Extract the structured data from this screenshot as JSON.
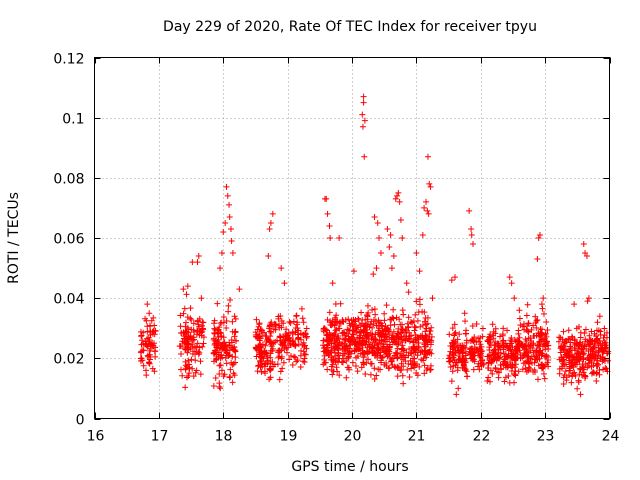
{
  "chart_data": {
    "type": "scatter",
    "title": "Day 229 of 2020, Rate Of TEC Index for receiver tpyu",
    "xlabel": "GPS time / hours",
    "ylabel": "ROTI / TECUs",
    "xlim": [
      16,
      24
    ],
    "ylim": [
      0,
      0.12
    ],
    "xticks": [
      16,
      17,
      18,
      19,
      20,
      21,
      22,
      23,
      24
    ],
    "xtick_labels": [
      "16",
      "17",
      "18",
      "19",
      "20",
      "21",
      "22",
      "23",
      "24"
    ],
    "yticks": [
      0,
      0.02,
      0.04,
      0.06,
      0.08,
      0.1,
      0.12
    ],
    "ytick_labels": [
      "0",
      "0.02",
      "0.04",
      "0.06",
      "0.08",
      "0.1",
      "0.12"
    ],
    "grid": true,
    "marker": "plus",
    "color": "#ff0000",
    "clusters": [
      {
        "x_start": 16.72,
        "x_end": 16.95,
        "y_center": 0.025,
        "y_spread": 0.01,
        "count": 70
      },
      {
        "x_start": 17.32,
        "x_end": 17.7,
        "y_center": 0.025,
        "y_spread": 0.012,
        "count": 120
      },
      {
        "x_start": 17.85,
        "x_end": 18.2,
        "y_center": 0.024,
        "y_spread": 0.012,
        "count": 130
      },
      {
        "x_start": 18.5,
        "x_end": 18.78,
        "y_center": 0.024,
        "y_spread": 0.01,
        "count": 110
      },
      {
        "x_start": 18.78,
        "x_end": 19.3,
        "y_center": 0.025,
        "y_spread": 0.01,
        "count": 130
      },
      {
        "x_start": 19.55,
        "x_end": 19.95,
        "y_center": 0.025,
        "y_spread": 0.01,
        "count": 180
      },
      {
        "x_start": 19.95,
        "x_end": 20.55,
        "y_center": 0.026,
        "y_spread": 0.011,
        "count": 260
      },
      {
        "x_start": 20.55,
        "x_end": 21.25,
        "y_center": 0.025,
        "y_spread": 0.011,
        "count": 260
      },
      {
        "x_start": 21.5,
        "x_end": 22.05,
        "y_center": 0.022,
        "y_spread": 0.009,
        "count": 170
      },
      {
        "x_start": 22.1,
        "x_end": 22.55,
        "y_center": 0.021,
        "y_spread": 0.009,
        "count": 160
      },
      {
        "x_start": 22.55,
        "x_end": 23.05,
        "y_center": 0.024,
        "y_spread": 0.01,
        "count": 190
      },
      {
        "x_start": 23.2,
        "x_end": 23.7,
        "y_center": 0.021,
        "y_spread": 0.009,
        "count": 180
      },
      {
        "x_start": 23.7,
        "x_end": 23.98,
        "y_center": 0.022,
        "y_spread": 0.009,
        "count": 110
      }
    ],
    "notable_points": [
      {
        "x": 16.82,
        "y": 0.038
      },
      {
        "x": 16.85,
        "y": 0.035
      },
      {
        "x": 16.8,
        "y": 0.016
      },
      {
        "x": 17.45,
        "y": 0.044
      },
      {
        "x": 17.52,
        "y": 0.052
      },
      {
        "x": 17.6,
        "y": 0.052
      },
      {
        "x": 17.62,
        "y": 0.054
      },
      {
        "x": 17.38,
        "y": 0.043
      },
      {
        "x": 17.66,
        "y": 0.04
      },
      {
        "x": 17.95,
        "y": 0.05
      },
      {
        "x": 17.98,
        "y": 0.055
      },
      {
        "x": 18.0,
        "y": 0.062
      },
      {
        "x": 18.03,
        "y": 0.065
      },
      {
        "x": 18.05,
        "y": 0.077
      },
      {
        "x": 18.07,
        "y": 0.074
      },
      {
        "x": 18.09,
        "y": 0.071
      },
      {
        "x": 18.1,
        "y": 0.067
      },
      {
        "x": 18.12,
        "y": 0.063
      },
      {
        "x": 18.13,
        "y": 0.059
      },
      {
        "x": 18.15,
        "y": 0.055
      },
      {
        "x": 18.25,
        "y": 0.043
      },
      {
        "x": 18.7,
        "y": 0.054
      },
      {
        "x": 18.72,
        "y": 0.063
      },
      {
        "x": 18.74,
        "y": 0.065
      },
      {
        "x": 18.77,
        "y": 0.068
      },
      {
        "x": 18.9,
        "y": 0.05
      },
      {
        "x": 18.95,
        "y": 0.045
      },
      {
        "x": 19.58,
        "y": 0.073
      },
      {
        "x": 19.6,
        "y": 0.073
      },
      {
        "x": 19.62,
        "y": 0.068
      },
      {
        "x": 19.65,
        "y": 0.064
      },
      {
        "x": 19.66,
        "y": 0.06
      },
      {
        "x": 19.8,
        "y": 0.06
      },
      {
        "x": 19.7,
        "y": 0.045
      },
      {
        "x": 20.03,
        "y": 0.049
      },
      {
        "x": 20.18,
        "y": 0.107
      },
      {
        "x": 20.18,
        "y": 0.105
      },
      {
        "x": 20.16,
        "y": 0.101
      },
      {
        "x": 20.2,
        "y": 0.099
      },
      {
        "x": 20.17,
        "y": 0.097
      },
      {
        "x": 20.19,
        "y": 0.087
      },
      {
        "x": 20.35,
        "y": 0.067
      },
      {
        "x": 20.4,
        "y": 0.065
      },
      {
        "x": 20.42,
        "y": 0.06
      },
      {
        "x": 20.45,
        "y": 0.055
      },
      {
        "x": 20.38,
        "y": 0.05
      },
      {
        "x": 20.33,
        "y": 0.048
      },
      {
        "x": 20.55,
        "y": 0.063
      },
      {
        "x": 20.6,
        "y": 0.061
      },
      {
        "x": 20.58,
        "y": 0.057
      },
      {
        "x": 20.65,
        "y": 0.054
      },
      {
        "x": 20.68,
        "y": 0.073
      },
      {
        "x": 20.7,
        "y": 0.074
      },
      {
        "x": 20.72,
        "y": 0.075
      },
      {
        "x": 20.74,
        "y": 0.072
      },
      {
        "x": 20.76,
        "y": 0.066
      },
      {
        "x": 20.78,
        "y": 0.06
      },
      {
        "x": 20.62,
        "y": 0.05
      },
      {
        "x": 20.85,
        "y": 0.045
      },
      {
        "x": 20.88,
        "y": 0.042
      },
      {
        "x": 21.0,
        "y": 0.055
      },
      {
        "x": 21.05,
        "y": 0.049
      },
      {
        "x": 21.12,
        "y": 0.07
      },
      {
        "x": 21.15,
        "y": 0.072
      },
      {
        "x": 21.17,
        "y": 0.069
      },
      {
        "x": 21.19,
        "y": 0.068
      },
      {
        "x": 21.2,
        "y": 0.078
      },
      {
        "x": 21.22,
        "y": 0.077
      },
      {
        "x": 21.18,
        "y": 0.087
      },
      {
        "x": 21.1,
        "y": 0.061
      },
      {
        "x": 21.25,
        "y": 0.04
      },
      {
        "x": 21.55,
        "y": 0.046
      },
      {
        "x": 21.6,
        "y": 0.047
      },
      {
        "x": 21.62,
        "y": 0.008
      },
      {
        "x": 21.65,
        "y": 0.01
      },
      {
        "x": 21.82,
        "y": 0.069
      },
      {
        "x": 21.85,
        "y": 0.063
      },
      {
        "x": 21.86,
        "y": 0.061
      },
      {
        "x": 21.88,
        "y": 0.058
      },
      {
        "x": 21.75,
        "y": 0.035
      },
      {
        "x": 22.45,
        "y": 0.047
      },
      {
        "x": 22.48,
        "y": 0.045
      },
      {
        "x": 22.52,
        "y": 0.04
      },
      {
        "x": 22.6,
        "y": 0.036
      },
      {
        "x": 22.88,
        "y": 0.053
      },
      {
        "x": 22.9,
        "y": 0.06
      },
      {
        "x": 22.92,
        "y": 0.061
      },
      {
        "x": 22.95,
        "y": 0.038
      },
      {
        "x": 22.97,
        "y": 0.04
      },
      {
        "x": 23.45,
        "y": 0.038
      },
      {
        "x": 23.55,
        "y": 0.008
      },
      {
        "x": 23.6,
        "y": 0.058
      },
      {
        "x": 23.62,
        "y": 0.055
      },
      {
        "x": 23.65,
        "y": 0.054
      },
      {
        "x": 23.68,
        "y": 0.04
      },
      {
        "x": 23.66,
        "y": 0.039
      },
      {
        "x": 23.85,
        "y": 0.034
      }
    ]
  }
}
